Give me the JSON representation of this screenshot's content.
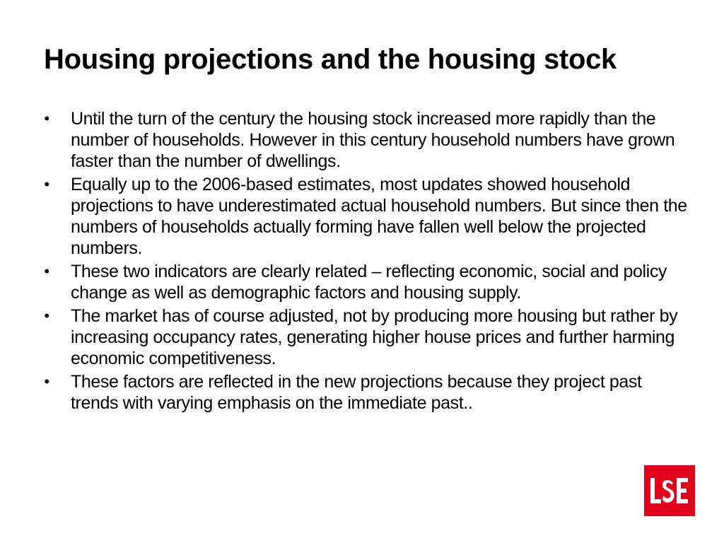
{
  "slide": {
    "title": "Housing projections and the housing stock",
    "bullets": [
      "Until the turn of the century the housing stock increased more rapidly than the number of households. However in this century household numbers have grown faster than the number of dwellings.",
      "Equally up to the 2006-based estimates, most updates showed household projections to have underestimated actual household numbers. But since then the numbers of households actually forming have fallen well below the projected numbers.",
      "These two indicators are clearly related – reflecting economic, social and policy change as well as demographic factors and housing supply.",
      "The market has of course adjusted, not by producing more housing but rather by increasing occupancy rates, generating higher house prices and further harming economic competitiveness.",
      "These factors are reflected in the new projections because they project past trends with varying emphasis on the immediate past.."
    ]
  },
  "logo": {
    "text": "LSE",
    "color": "#e3001b"
  }
}
